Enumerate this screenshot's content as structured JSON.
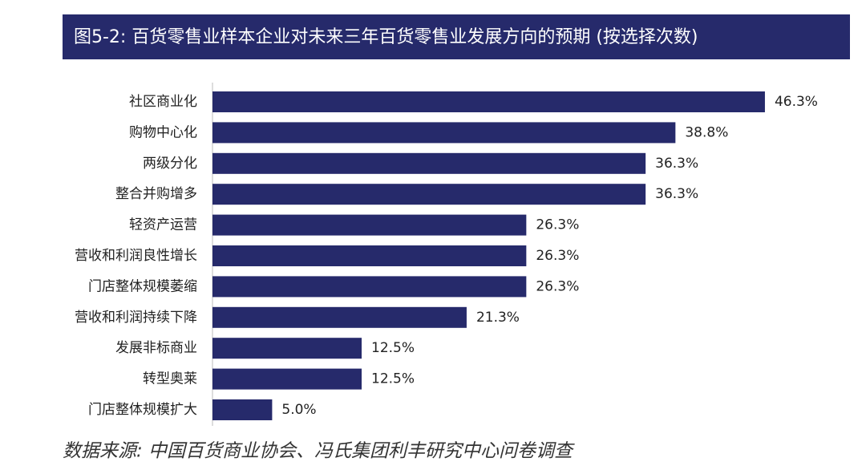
{
  "chart_data": {
    "type": "bar",
    "orientation": "horizontal",
    "title": "图5-2: 百货零售业样本企业对未来三年百货零售业发展方向的预期 (按选择次数)",
    "source": "数据来源: 中国百货商业协会、冯氏集团利丰研究中心问卷调查",
    "categories": [
      "社区商业化",
      "购物中心化",
      "两级分化",
      "整合并购增多",
      "轻资产运营",
      "营收和利润良性增长",
      "门店整体规模萎缩",
      "营收和利润持续下降",
      "发展非标商业",
      "转型奥莱",
      "门店整体规模扩大"
    ],
    "values": [
      46.3,
      38.8,
      36.3,
      36.3,
      26.3,
      26.3,
      26.3,
      21.3,
      12.5,
      12.5,
      5.0
    ],
    "value_labels": [
      "46.3%",
      "38.8%",
      "36.3%",
      "36.3%",
      "26.3%",
      "26.3%",
      "26.3%",
      "21.3%",
      "12.5%",
      "12.5%",
      "5.0%"
    ],
    "color": "#262a6b"
  }
}
